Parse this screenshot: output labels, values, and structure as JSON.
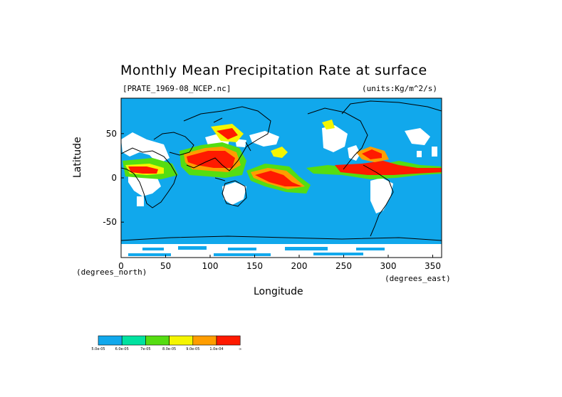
{
  "title": "Monthly Mean Precipitation Rate at surface",
  "file_label": "[PRATE_1969-08_NCEP.nc]",
  "units_label": "(units:Kg/m^2/s)",
  "ylabel": "Latitude",
  "xlabel": "Longitude",
  "x_units": "(degrees_east)",
  "y_units": "(degrees_north)",
  "x_ticks": [
    "0",
    "50",
    "100",
    "150",
    "200",
    "250",
    "300",
    "350"
  ],
  "y_ticks": [
    "50",
    "0",
    "-50"
  ],
  "colorbar": {
    "colors": [
      "#11a8ec",
      "#00e2a0",
      "#55dd11",
      "#f5f500",
      "#ff9d00",
      "#ff1a00"
    ],
    "labels": [
      "5.0e-05",
      "6.0e-05",
      "7e-05",
      "8.0e-05",
      "9.0e-05",
      "1.0e-04",
      "∞"
    ]
  },
  "map": {
    "ocean_color": "#11a8ec",
    "missing_color": "#ffffff",
    "lon_range": [
      0,
      360
    ],
    "lat_range": [
      -90,
      90
    ]
  }
}
